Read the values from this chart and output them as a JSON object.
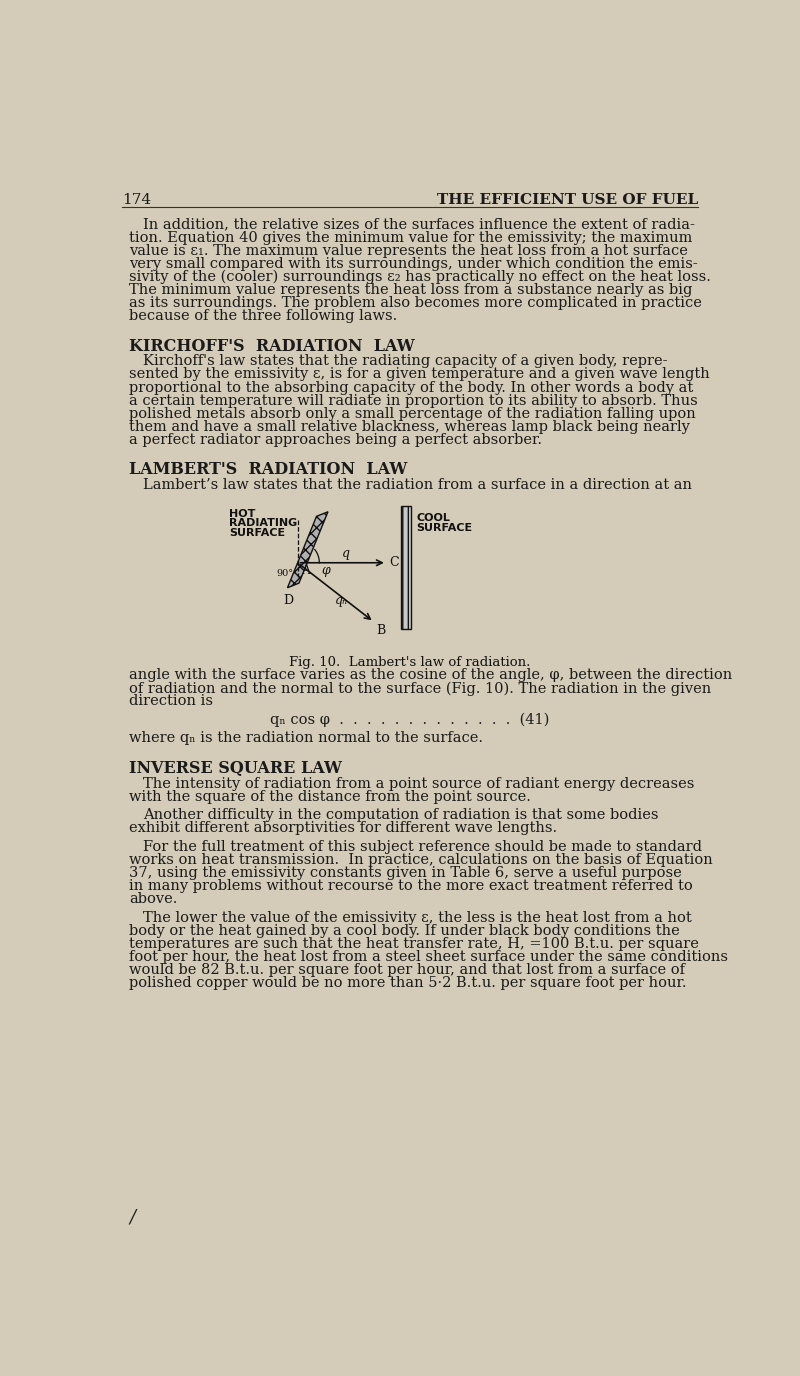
{
  "page_number": "174",
  "header_title": "THE EFFICIENT USE OF FUEL",
  "bg_color": "#d4ccb8",
  "text_color": "#1a1a1a",
  "font_size_body": 10.5,
  "font_size_heading": 11.5,
  "font_size_header": 11,
  "paragraphs": [
    {
      "type": "body",
      "indent": true,
      "text": "In addition, the relative sizes of the surfaces influence the extent of radia-\ntion. Equation 40 gives the minimum value for the emissivity; the maximum\nvalue is ε₁. The maximum value represents the heat loss from a hot surface\nvery small compared with its surroundings, under which condition the emis-\nsivity of the (cooler) surroundings ε₂ has practically no effect on the heat loss.\nThe minimum value represents the heat loss from a substance nearly as big\nas its surroundings. The problem also becomes more complicated in practice\nbecause of the three following laws."
    },
    {
      "type": "heading",
      "text": "KIRCHOFF'S  RADIATION  LAW"
    },
    {
      "type": "body",
      "indent": true,
      "text": "Kirchoff's law states that the radiating capacity of a given body, repre-\nsented by the emissivity ε, is for a given temperature and a given wave length\nproportional to the absorbing capacity of the body. In other words a body at\na certain temperature will radiate in proportion to its ability to absorb. Thus\npolished metals absorb only a small percentage of the radiation falling upon\nthem and have a small relative blackness, whereas lamp black being nearly\na perfect radiator approaches being a perfect absorber."
    },
    {
      "type": "heading",
      "text": "LAMBERT'S  RADIATION  LAW"
    },
    {
      "type": "body",
      "indent": true,
      "text": "Lambert’s law states that the radiation from a surface in a direction at an"
    },
    {
      "type": "figure"
    },
    {
      "type": "body",
      "indent": false,
      "text": "angle with the surface varies as the cosine of the angle, φ, between the direction\nof radiation and the normal to the surface (Fig. 10). The radiation in the given\ndirection is"
    },
    {
      "type": "equation",
      "text": "qₙ cos φ  .  .  .  .  .  .  .  .  .  .  .  .  .  (41)"
    },
    {
      "type": "body",
      "indent": false,
      "text": "where qₙ is the radiation normal to the surface."
    },
    {
      "type": "heading",
      "text": "INVERSE SQUARE LAW"
    },
    {
      "type": "body",
      "indent": true,
      "text": "The intensity of radiation from a point source of radiant energy decreases\nwith the square of the distance from the point source."
    },
    {
      "type": "body",
      "indent": true,
      "text": "Another difficulty in the computation of radiation is that some bodies\nexhibit different absorptivities for different wave lengths."
    },
    {
      "type": "body",
      "indent": true,
      "text": "For the full treatment of this subject reference should be made to standard\nworks on heat transmission.  In practice, calculations on the basis of Equation\n37, using the emissivity constants given in Table 6, serve a useful purpose\nin many problems without recourse to the more exact treatment referred to\nabove."
    },
    {
      "type": "body",
      "indent": true,
      "text": "The lower the value of the emissivity ε, the less is the heat lost from a hot\nbody or the heat gained by a cool body. If under black body conditions the\ntemperatures are such that the heat transfer rate, H, =100 B.t.u. per square\nfoot per hour, the heat lost from a steel sheet surface under the same conditions\nwould be 82 B.t.u. per square foot per hour, and that lost from a surface of\npolished copper would be no more than 5·2 B.t.u. per square foot per hour."
    }
  ]
}
